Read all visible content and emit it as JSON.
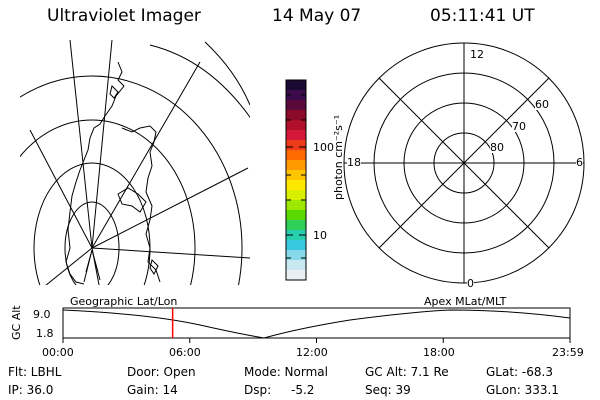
{
  "header": {
    "title": "Ultraviolet Imager",
    "date": "14 May 07",
    "time": "05:11:41 UT"
  },
  "colorbar": {
    "label": "photon cm⁻²s⁻¹",
    "ticks": [
      "100",
      "10"
    ],
    "colors": [
      "#1a0a33",
      "#3a0a4a",
      "#5a0a3a",
      "#8a0a2a",
      "#b0102a",
      "#d4183a",
      "#ec3a1a",
      "#ff6a00",
      "#ff9a00",
      "#ffc400",
      "#ffe800",
      "#d8f000",
      "#9ee800",
      "#5ad800",
      "#2ed05a",
      "#28d0b0",
      "#38c8e0",
      "#88d8ec",
      "#c8e8f0",
      "#e8f0f4"
    ]
  },
  "polar": {
    "mlt_labels": {
      "top": "12",
      "left": "18",
      "right": "6",
      "bottom": "0"
    },
    "lat_labels": [
      "60",
      "70",
      "80"
    ]
  },
  "timeline": {
    "left_label": "Geographic Lat/Lon",
    "right_label": "Apex MLat/MLT",
    "axis_title": "GC Alt",
    "y_max": "9.0",
    "y_min": "1.8",
    "x_ticks": [
      "00:00",
      "06:00",
      "12:00",
      "18:00",
      "23:59"
    ],
    "current_marker_hour": 5.19,
    "marker_color": "#ff0000"
  },
  "info": {
    "flt": "Flt: LBHL",
    "ip": "IP: 36.0",
    "door": "Door: Open",
    "gain": "Gain: 14",
    "mode": "Mode: Normal",
    "dsp_label": "Dsp:",
    "dsp_value": "-5.2",
    "gcalt": "GC Alt: 7.1 Re",
    "seq": "Seq: 39",
    "glat": "GLat: -68.3",
    "glon": "GLon: 333.1"
  }
}
